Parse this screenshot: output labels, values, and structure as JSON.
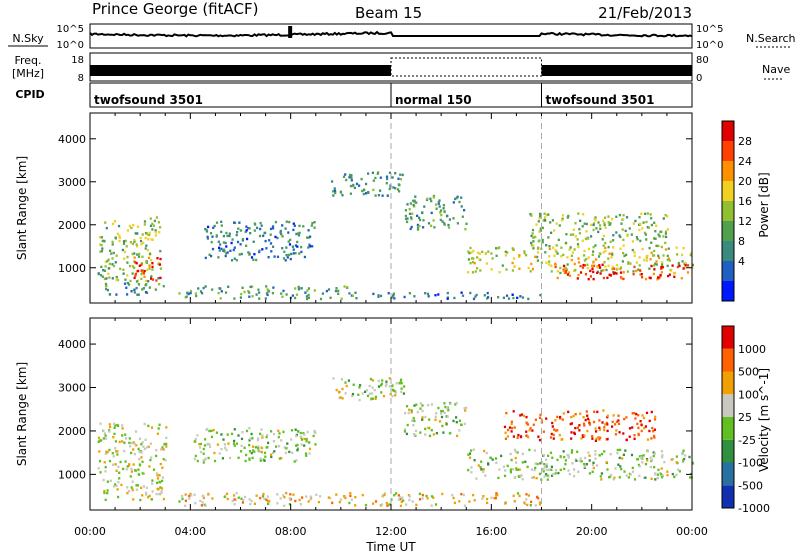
{
  "header": {
    "station": "Prince George (fitACF)",
    "beam": "Beam 15",
    "date": "21/Feb/2013"
  },
  "status": {
    "nsky_label": "N.Sky",
    "nsky_ticks": [
      "10^5",
      "10^0"
    ],
    "nsearch_label": "N.Search",
    "freq_label_1": "Freq.",
    "freq_label_2": "[MHz]",
    "freq_ticks": [
      "18",
      "8"
    ],
    "nave_label": "Nave",
    "nave_ticks": [
      "80",
      "0"
    ],
    "cpid_label": "CPID",
    "cpid_segments": [
      {
        "name": "twofsound 3501",
        "start": 0,
        "end": 12
      },
      {
        "name": "normal 150",
        "start": 12,
        "end": 18
      },
      {
        "name": "twofsound 3501",
        "start": 18,
        "end": 24
      }
    ]
  },
  "chart_data": [
    {
      "type": "heatmap",
      "name": "power",
      "ylabel": "Slant Range [km]",
      "ylim": [
        180,
        4600
      ],
      "yticks": [
        1000,
        2000,
        3000,
        4000
      ],
      "xlim": [
        0,
        24
      ],
      "colorbar_label": "Power [dB]",
      "colorbar_ticks": [
        "28",
        "24",
        "20",
        "16",
        "12",
        "8",
        "4"
      ],
      "colors": [
        "#0018ff",
        "#2060c0",
        "#3a8a80",
        "#50a050",
        "#90c030",
        "#f0d020",
        "#ff9000",
        "#ff4000",
        "#e00000"
      ],
      "bands": [
        {
          "t0": 0.3,
          "t1": 2.8,
          "r0": 700,
          "r1": 2200,
          "level": 0.45
        },
        {
          "t0": 1.7,
          "t1": 2.8,
          "r0": 700,
          "r1": 1300,
          "level": 0.9
        },
        {
          "t0": 0.5,
          "t1": 3.0,
          "r0": 400,
          "r1": 700,
          "level": 0.3
        },
        {
          "t0": 3.5,
          "t1": 10.5,
          "r0": 300,
          "r1": 600,
          "level": 0.35
        },
        {
          "t0": 10.5,
          "t1": 18,
          "r0": 300,
          "r1": 450,
          "level": 0.2
        },
        {
          "t0": 4.5,
          "t1": 9.0,
          "r0": 1200,
          "r1": 2100,
          "level": 0.25
        },
        {
          "t0": 9.5,
          "t1": 12.5,
          "r0": 2700,
          "r1": 3250,
          "level": 0.3
        },
        {
          "t0": 12.5,
          "t1": 15.0,
          "r0": 1900,
          "r1": 2700,
          "level": 0.35
        },
        {
          "t0": 15.0,
          "t1": 24,
          "r0": 900,
          "r1": 1500,
          "level": 0.55
        },
        {
          "t0": 18.5,
          "t1": 24,
          "r0": 750,
          "r1": 1100,
          "level": 0.9
        },
        {
          "t0": 17.5,
          "t1": 23,
          "r0": 1500,
          "r1": 2300,
          "level": 0.45
        }
      ]
    },
    {
      "type": "heatmap",
      "name": "velocity",
      "ylabel": "Slant Range [km]",
      "ylim": [
        180,
        4600
      ],
      "yticks": [
        1000,
        2000,
        3000,
        4000
      ],
      "xlim": [
        0,
        24
      ],
      "xticks": [
        "00:00",
        "04:00",
        "08:00",
        "12:00",
        "16:00",
        "20:00",
        "00:00"
      ],
      "xlabel": "Time UT",
      "colorbar_label": "Velocity [m s^-1]",
      "colorbar_ticks": [
        "1000",
        "500",
        "100",
        "25",
        "-25",
        "-100",
        "-500",
        "-1000"
      ],
      "colors": [
        "#1030b0",
        "#2870a0",
        "#309040",
        "#60c020",
        "#c8c8c0",
        "#f0a000",
        "#ff6000",
        "#e00000"
      ],
      "bands": [
        {
          "t0": 0.3,
          "t1": 3.0,
          "r0": 700,
          "r1": 2200,
          "level": 0.55
        },
        {
          "t0": 0.5,
          "t1": 3.0,
          "r0": 400,
          "r1": 700,
          "level": 0.6
        },
        {
          "t0": 3.5,
          "t1": 18,
          "r0": 300,
          "r1": 600,
          "level": 0.62
        },
        {
          "t0": 4.0,
          "t1": 9.0,
          "r0": 1300,
          "r1": 2100,
          "level": 0.5
        },
        {
          "t0": 9.5,
          "t1": 12.5,
          "r0": 2700,
          "r1": 3250,
          "level": 0.5
        },
        {
          "t0": 12.5,
          "t1": 15.0,
          "r0": 1900,
          "r1": 2700,
          "level": 0.5
        },
        {
          "t0": 15.0,
          "t1": 24,
          "r0": 900,
          "r1": 1600,
          "level": 0.5
        },
        {
          "t0": 16.5,
          "t1": 22.5,
          "r0": 1800,
          "r1": 2500,
          "level": 0.85
        }
      ]
    }
  ]
}
